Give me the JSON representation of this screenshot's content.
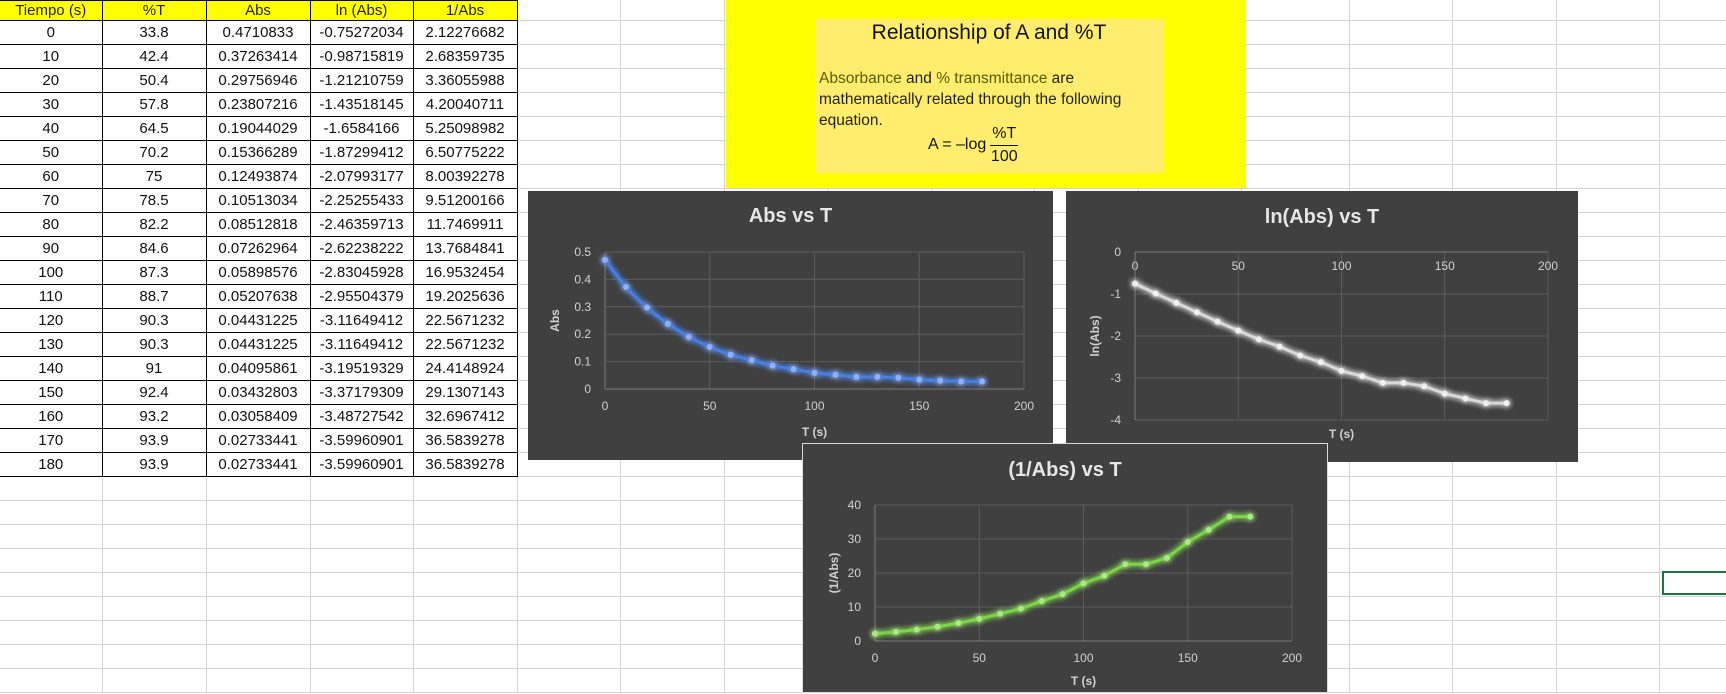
{
  "table": {
    "headers": [
      "Tiempo (s)",
      "%T",
      "Abs",
      "ln (Abs)",
      "1/Abs"
    ],
    "rows": [
      [
        "0",
        "33.8",
        "0.4710833",
        "-0.75272034",
        "2.12276682"
      ],
      [
        "10",
        "42.4",
        "0.37263414",
        "-0.98715819",
        "2.68359735"
      ],
      [
        "20",
        "50.4",
        "0.29756946",
        "-1.21210759",
        "3.36055988"
      ],
      [
        "30",
        "57.8",
        "0.23807216",
        "-1.43518145",
        "4.20040711"
      ],
      [
        "40",
        "64.5",
        "0.19044029",
        "-1.6584166",
        "5.25098982"
      ],
      [
        "50",
        "70.2",
        "0.15366289",
        "-1.87299412",
        "6.50775222"
      ],
      [
        "60",
        "75",
        "0.12493874",
        "-2.07993177",
        "8.00392278"
      ],
      [
        "70",
        "78.5",
        "0.10513034",
        "-2.25255433",
        "9.51200166"
      ],
      [
        "80",
        "82.2",
        "0.08512818",
        "-2.46359713",
        "11.7469911"
      ],
      [
        "90",
        "84.6",
        "0.07262964",
        "-2.62238222",
        "13.7684841"
      ],
      [
        "100",
        "87.3",
        "0.05898576",
        "-2.83045928",
        "16.9532454"
      ],
      [
        "110",
        "88.7",
        "0.05207638",
        "-2.95504379",
        "19.2025636"
      ],
      [
        "120",
        "90.3",
        "0.04431225",
        "-3.11649412",
        "22.5671232"
      ],
      [
        "130",
        "90.3",
        "0.04431225",
        "-3.11649412",
        "22.5671232"
      ],
      [
        "140",
        "91",
        "0.04095861",
        "-3.19519329",
        "24.4148924"
      ],
      [
        "150",
        "92.4",
        "0.03432803",
        "-3.37179309",
        "29.1307143"
      ],
      [
        "160",
        "93.2",
        "0.03058409",
        "-3.48727542",
        "32.6967412"
      ],
      [
        "170",
        "93.9",
        "0.02733441",
        "-3.59960901",
        "36.5839278"
      ],
      [
        "180",
        "93.9",
        "0.02733441",
        "-3.59960901",
        "36.5839278"
      ]
    ]
  },
  "info_box": {
    "title": "Relationship of A and %T",
    "text_hl1": "Absorbance",
    "text_mid1": " and ",
    "text_hl2": "% transmittance",
    "text_rest": " are mathematically related through the following equation.",
    "equation_lhs": "A = –log",
    "equation_num": "%T",
    "equation_den": "100"
  },
  "colors": {
    "header_yellow": "#ffff00",
    "chart_bg": "#404040",
    "series_blue": "#4a7fe0",
    "series_white": "#d9d9d9",
    "series_green": "#7dd34a",
    "selection_green": "#217346"
  },
  "chart_data": [
    {
      "type": "line",
      "title": "Abs vs T",
      "xlabel": "T (s)",
      "ylabel": "Abs",
      "x": [
        0,
        10,
        20,
        30,
        40,
        50,
        60,
        70,
        80,
        90,
        100,
        110,
        120,
        130,
        140,
        150,
        160,
        170,
        180
      ],
      "series": [
        {
          "name": "Abs",
          "color": "#4a7fe0",
          "values": [
            0.4710833,
            0.37263414,
            0.29756946,
            0.23807216,
            0.19044029,
            0.15366289,
            0.12493874,
            0.10513034,
            0.08512818,
            0.07262964,
            0.05898576,
            0.05207638,
            0.04431225,
            0.04431225,
            0.04095861,
            0.03432803,
            0.03058409,
            0.02733441,
            0.02733441
          ]
        }
      ],
      "xlim": [
        0,
        200
      ],
      "ylim": [
        0,
        0.5
      ],
      "xticks": [
        0,
        50,
        100,
        150,
        200
      ],
      "yticks": [
        0,
        0.1,
        0.2,
        0.3,
        0.4,
        0.5
      ],
      "grid": true,
      "legend": "none"
    },
    {
      "type": "line",
      "title": "ln(Abs) vs T",
      "xlabel": "T (s)",
      "ylabel": "ln(Abs)",
      "x": [
        0,
        10,
        20,
        30,
        40,
        50,
        60,
        70,
        80,
        90,
        100,
        110,
        120,
        130,
        140,
        150,
        160,
        170,
        180
      ],
      "series": [
        {
          "name": "ln(Abs)",
          "color": "#d9d9d9",
          "values": [
            -0.75272034,
            -0.98715819,
            -1.21210759,
            -1.43518145,
            -1.6584166,
            -1.87299412,
            -2.07993177,
            -2.25255433,
            -2.46359713,
            -2.62238222,
            -2.83045928,
            -2.95504379,
            -3.11649412,
            -3.11649412,
            -3.19519329,
            -3.37179309,
            -3.48727542,
            -3.59960901,
            -3.59960901
          ]
        }
      ],
      "xlim": [
        0,
        200
      ],
      "ylim": [
        -4,
        0
      ],
      "xticks": [
        0,
        50,
        100,
        150,
        200
      ],
      "yticks": [
        0,
        -1,
        -2,
        -3,
        -4
      ],
      "x_axis_position": "top",
      "grid": true,
      "legend": "none"
    },
    {
      "type": "line",
      "title": "(1/Abs) vs T",
      "xlabel": "T (s)",
      "ylabel": "(1/Abs)",
      "x": [
        0,
        10,
        20,
        30,
        40,
        50,
        60,
        70,
        80,
        90,
        100,
        110,
        120,
        130,
        140,
        150,
        160,
        170,
        180
      ],
      "series": [
        {
          "name": "1/Abs",
          "color": "#7dd34a",
          "values": [
            2.12276682,
            2.68359735,
            3.36055988,
            4.20040711,
            5.25098982,
            6.50775222,
            8.00392278,
            9.51200166,
            11.7469911,
            13.7684841,
            16.9532454,
            19.2025636,
            22.5671232,
            22.5671232,
            24.4148924,
            29.1307143,
            32.6967412,
            36.5839278,
            36.5839278
          ]
        }
      ],
      "xlim": [
        0,
        200
      ],
      "ylim": [
        0,
        40
      ],
      "xticks": [
        0,
        50,
        100,
        150,
        200
      ],
      "yticks": [
        0,
        10,
        20,
        30,
        40
      ],
      "grid": true,
      "legend": "none"
    }
  ]
}
